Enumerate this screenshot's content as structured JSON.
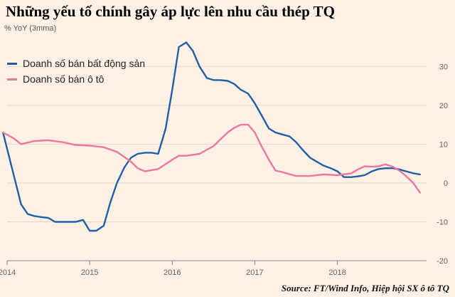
{
  "title": "Những yếu tố chính gây áp lực lên nhu cầu thép TQ",
  "unit_label": "% YoY (3mma)",
  "source": "Source: FT/Wind Info, Hiệp hội SX ô tô TQ",
  "colors": {
    "background": "#fff1e5",
    "property": "#1f5fa6",
    "auto": "#e9779e"
  },
  "chart_data": {
    "type": "line",
    "x_ticks": [
      "2014",
      "2015",
      "2016",
      "2017",
      "2018"
    ],
    "y_ticks": [
      30,
      20,
      10,
      0,
      -10,
      -20
    ],
    "ylim": [
      -20,
      35
    ],
    "xlim": [
      2014.0,
      2019.08
    ],
    "grid": true,
    "legend_position": "top-left",
    "series": [
      {
        "name": "Doanh số bán bất động sản",
        "color": "#1f5fa6",
        "x": [
          2013.95,
          2014.17,
          2014.25,
          2014.33,
          2014.42,
          2014.5,
          2014.58,
          2014.67,
          2014.75,
          2014.83,
          2014.92,
          2015.0,
          2015.08,
          2015.17,
          2015.25,
          2015.33,
          2015.42,
          2015.5,
          2015.58,
          2015.67,
          2015.75,
          2015.83,
          2015.92,
          2016.0,
          2016.08,
          2016.17,
          2016.25,
          2016.33,
          2016.42,
          2016.5,
          2016.58,
          2016.67,
          2016.75,
          2016.83,
          2016.92,
          2017.0,
          2017.08,
          2017.17,
          2017.25,
          2017.33,
          2017.42,
          2017.5,
          2017.58,
          2017.67,
          2017.75,
          2017.83,
          2017.92,
          2018.0,
          2018.08,
          2018.17,
          2018.25,
          2018.33,
          2018.42,
          2018.5,
          2018.58,
          2018.67,
          2018.75,
          2018.83,
          2018.92,
          2019.0
        ],
        "values": [
          13,
          -5.5,
          -8,
          -8.5,
          -8.8,
          -9,
          -10,
          -10,
          -10,
          -10,
          -9.5,
          -12.3,
          -12.3,
          -11,
          -5,
          0,
          4,
          6.5,
          7.5,
          7.8,
          7.8,
          7.5,
          14,
          24,
          35,
          36.2,
          34,
          30,
          27,
          26.5,
          26.5,
          26.3,
          25.5,
          24,
          23,
          20.5,
          17.5,
          14,
          13,
          12.5,
          12,
          10.5,
          8.5,
          6.5,
          5.5,
          4.5,
          3.8,
          3,
          1.5,
          1.5,
          1.7,
          2,
          3,
          3.6,
          3.8,
          3.8,
          3.5,
          3,
          2.5,
          2.2
        ]
      },
      {
        "name": "Doanh số bán ô tô",
        "color": "#e9779e",
        "x": [
          2013.95,
          2014.08,
          2014.17,
          2014.33,
          2014.5,
          2014.67,
          2014.83,
          2015.0,
          2015.17,
          2015.33,
          2015.5,
          2015.58,
          2015.67,
          2015.83,
          2016.0,
          2016.08,
          2016.17,
          2016.33,
          2016.5,
          2016.67,
          2016.75,
          2016.83,
          2016.92,
          2017.0,
          2017.08,
          2017.17,
          2017.25,
          2017.33,
          2017.5,
          2017.67,
          2017.83,
          2018.0,
          2018.17,
          2018.25,
          2018.33,
          2018.42,
          2018.5,
          2018.58,
          2018.67,
          2018.75,
          2018.83,
          2018.92,
          2019.0
        ],
        "values": [
          13,
          11.5,
          10,
          10.8,
          11,
          10.5,
          9.8,
          9.6,
          9.2,
          8,
          5.5,
          3.8,
          3,
          3.6,
          6,
          7,
          7,
          7.5,
          9.5,
          13,
          14.2,
          15,
          15,
          13,
          9.5,
          6,
          3.2,
          2.8,
          1.8,
          1.8,
          2.2,
          2,
          2.5,
          3.5,
          4.3,
          4.2,
          4.3,
          4.8,
          4.2,
          3.2,
          1.8,
          0,
          -2.5
        ]
      }
    ]
  }
}
